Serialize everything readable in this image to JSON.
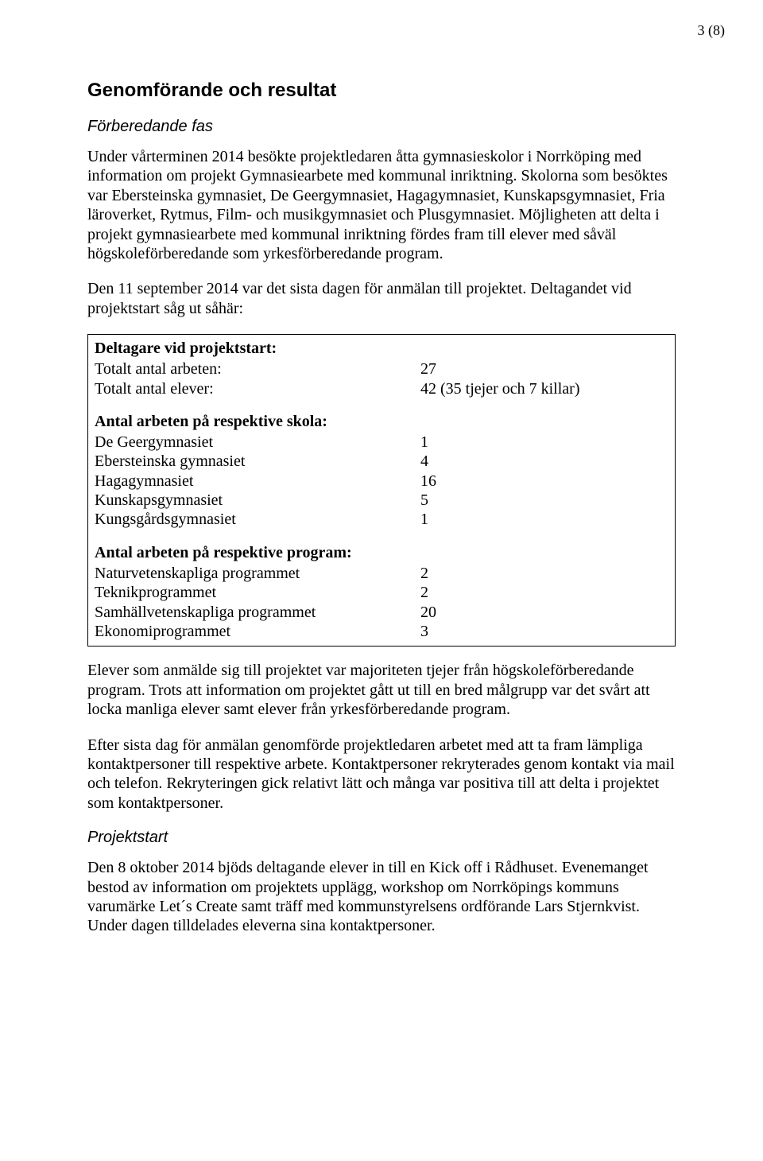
{
  "page": {
    "pageNumber": "3 (8)"
  },
  "headings": {
    "sectionTitle": "Genomförande och resultat",
    "sub1": "Förberedande fas",
    "sub2": "Projektstart"
  },
  "paragraphs": {
    "p1": "Under vårterminen 2014 besökte projektledaren åtta gymnasieskolor i Norrköping med information om projekt Gymnasiearbete med kommunal inriktning. Skolorna som besöktes var Ebersteinska gymnasiet, De Geergymnasiet, Hagagymnasiet, Kunskapsgymnasiet, Fria läroverket, Rytmus, Film- och musikgymnasiet och Plusgymnasiet. Möjligheten att delta i projekt gymnasiearbete med kommunal inriktning fördes fram till elever med såväl högskoleförberedande som yrkesförberedande program.",
    "p2": "Den 11 september 2014 var det sista dagen för anmälan till projektet. Deltagandet vid projektstart såg ut såhär:",
    "p3": "Elever som anmälde sig till projektet var majoriteten tjejer från högskoleförberedande program. Trots att information om projektet gått ut till en bred målgrupp var det svårt att locka manliga elever samt elever från yrkesförberedande program.",
    "p4": "Efter sista dag för anmälan genomförde projektledaren arbetet med att ta fram lämpliga kontaktpersoner till respektive arbete. Kontaktpersoner rekryterades genom kontakt via mail och telefon. Rekryteringen gick relativt lätt och många var positiva till att delta i projektet som kontaktpersoner.",
    "p5": "Den 8 oktober 2014 bjöds deltagande elever in till en Kick off i Rådhuset. Evenemanget bestod av information om projektets upplägg, workshop om Norrköpings kommuns varumärke Let´s Create samt träff med kommunstyrelsens ordförande Lars Stjernkvist. Under dagen tilldelades eleverna sina kontaktpersoner."
  },
  "box": {
    "group1": {
      "title": "Deltagare vid projektstart:",
      "rows": [
        {
          "label": "Totalt antal arbeten:",
          "value": "27"
        },
        {
          "label": "Totalt antal elever:",
          "value": "42 (35 tjejer och 7 killar)"
        }
      ]
    },
    "group2": {
      "title": "Antal arbeten på respektive skola:",
      "rows": [
        {
          "label": "De Geergymnasiet",
          "value": "1"
        },
        {
          "label": "Ebersteinska gymnasiet",
          "value": "4"
        },
        {
          "label": "Hagagymnasiet",
          "value": "16"
        },
        {
          "label": "Kunskapsgymnasiet",
          "value": "5"
        },
        {
          "label": "Kungsgårdsgymnasiet",
          "value": "1"
        }
      ]
    },
    "group3": {
      "title": "Antal arbeten på respektive program:",
      "rows": [
        {
          "label": "Naturvetenskapliga programmet",
          "value": "2"
        },
        {
          "label": "Teknikprogrammet",
          "value": "2"
        },
        {
          "label": "Samhällvetenskapliga programmet",
          "value": "20"
        },
        {
          "label": "Ekonomiprogrammet",
          "value": "3"
        }
      ]
    }
  }
}
